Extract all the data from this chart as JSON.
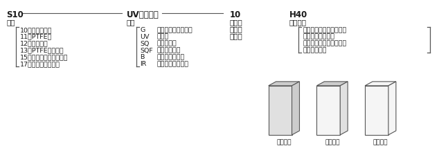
{
  "bg_color": "#ffffff",
  "text_color": "#1a1a1a",
  "line_color": "#555555",
  "section1_header": "S10",
  "section1_label": "型式",
  "section1_items": [
    "10：標準タイプ",
    "11：PTFE栓",
    "12：ガラス栓",
    "13：PTFEキャップ",
    "15：スクリューキャップ",
    "17：ガラスキャップ"
  ],
  "section2_header": "UV（石英）",
  "section2_label": "材質",
  "section2_items": [
    [
      "G",
      "：ホウケイ酸ガラス"
    ],
    [
      "UV",
      "：石英"
    ],
    [
      "SQ",
      "：合成石英"
    ],
    [
      "SQF",
      "：無蛍光石英"
    ],
    [
      "B",
      "：ブラック石英"
    ],
    [
      "IR",
      "：赤外用合成石英"
    ]
  ],
  "section3_header": "10",
  "section3_lines": [
    "光路長",
    "光路幅",
    "光路径"
  ],
  "section4_header": "H40",
  "section4_label": "指示事項",
  "section4_lines": [
    "特別な指示がある場合に",
    "記入してください",
    "価格については問い合わ",
    "せてください"
  ],
  "box_labels": [
    "二面透明",
    "四面透明",
    "全面透明"
  ],
  "font_size_header": 8.5,
  "font_size_label": 7.5,
  "font_size_item": 6.8
}
